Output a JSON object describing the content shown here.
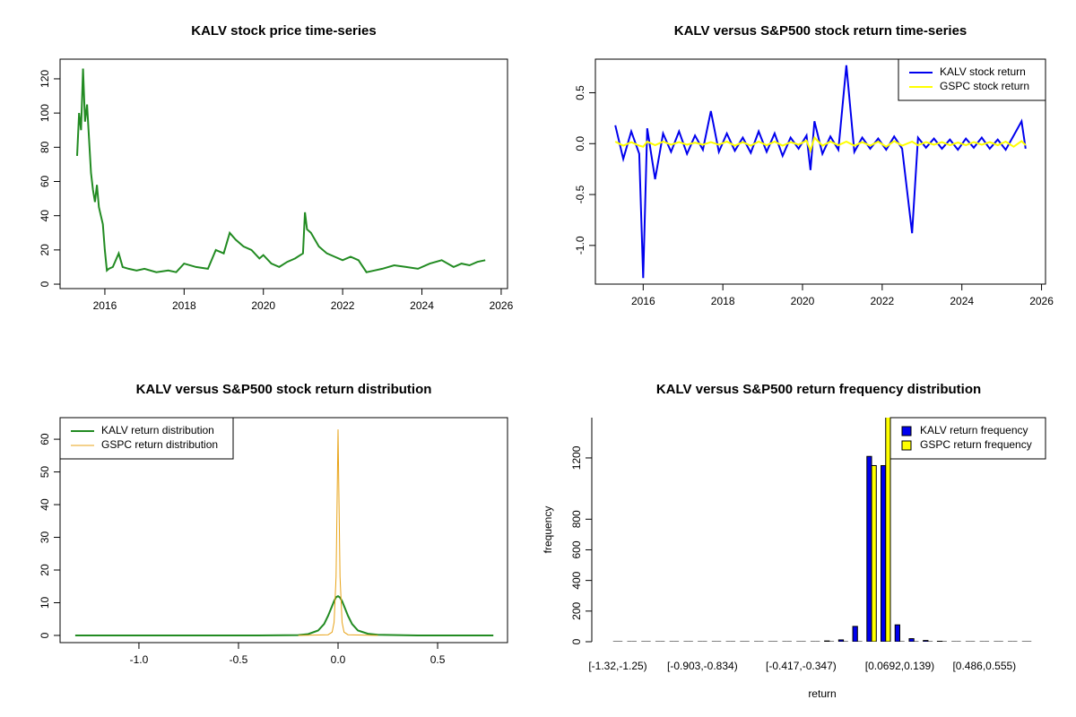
{
  "chart_data": [
    {
      "type": "line",
      "title": "KALV stock price time-series",
      "color": "#228B22",
      "x": [
        2015.3,
        2015.35,
        2015.4,
        2015.45,
        2015.5,
        2015.55,
        2015.6,
        2015.65,
        2015.7,
        2015.75,
        2015.8,
        2015.85,
        2015.9,
        2015.95,
        2016.0,
        2016.05,
        2016.1,
        2016.2,
        2016.35,
        2016.45,
        2016.6,
        2016.8,
        2017.0,
        2017.3,
        2017.6,
        2017.8,
        2018.0,
        2018.3,
        2018.6,
        2018.8,
        2019.0,
        2019.15,
        2019.3,
        2019.5,
        2019.7,
        2019.9,
        2020.0,
        2020.2,
        2020.4,
        2020.6,
        2020.8,
        2021.0,
        2021.05,
        2021.1,
        2021.2,
        2021.4,
        2021.6,
        2021.8,
        2022.0,
        2022.2,
        2022.4,
        2022.6,
        2022.8,
        2023.0,
        2023.3,
        2023.6,
        2023.9,
        2024.2,
        2024.5,
        2024.8,
        2025.0,
        2025.2,
        2025.4,
        2025.6
      ],
      "values": [
        75,
        100,
        90,
        126,
        95,
        105,
        85,
        65,
        55,
        48,
        58,
        45,
        40,
        35,
        20,
        8,
        9,
        10,
        18,
        10,
        9,
        8,
        9,
        7,
        8,
        7,
        12,
        10,
        9,
        20,
        18,
        30,
        26,
        22,
        20,
        15,
        17,
        12,
        10,
        13,
        15,
        18,
        42,
        32,
        30,
        22,
        18,
        16,
        14,
        16,
        14,
        7,
        8,
        9,
        11,
        10,
        9,
        12,
        14,
        10,
        12,
        11,
        13,
        14
      ],
      "xlim": [
        2014.87,
        2026.16
      ],
      "xticks": [
        2016,
        2018,
        2020,
        2022,
        2024,
        2026
      ],
      "ylim": [
        -2.6,
        131.5
      ],
      "yticks": [
        0,
        20,
        40,
        60,
        80,
        100,
        120
      ]
    },
    {
      "type": "line",
      "title": "KALV versus S&P500 stock return time-series",
      "legend": "topright",
      "x": [
        2015.3,
        2015.5,
        2015.7,
        2015.9,
        2016.0,
        2016.1,
        2016.3,
        2016.5,
        2016.7,
        2016.9,
        2017.1,
        2017.3,
        2017.5,
        2017.7,
        2017.9,
        2018.1,
        2018.3,
        2018.5,
        2018.7,
        2018.9,
        2019.1,
        2019.3,
        2019.5,
        2019.7,
        2019.9,
        2020.1,
        2020.2,
        2020.3,
        2020.5,
        2020.7,
        2020.9,
        2021.1,
        2021.3,
        2021.5,
        2021.7,
        2021.9,
        2022.1,
        2022.3,
        2022.5,
        2022.75,
        2022.9,
        2023.1,
        2023.3,
        2023.5,
        2023.7,
        2023.9,
        2024.1,
        2024.3,
        2024.5,
        2024.7,
        2024.9,
        2025.1,
        2025.3,
        2025.5,
        2025.6
      ],
      "series": [
        {
          "name": "KALV stock return",
          "color": "#0000EE",
          "values": [
            0.18,
            -0.15,
            0.12,
            -0.1,
            -1.32,
            0.15,
            -0.35,
            0.1,
            -0.08,
            0.12,
            -0.1,
            0.08,
            -0.06,
            0.32,
            -0.08,
            0.1,
            -0.07,
            0.06,
            -0.09,
            0.12,
            -0.08,
            0.1,
            -0.12,
            0.06,
            -0.05,
            0.08,
            -0.26,
            0.22,
            -0.1,
            0.07,
            -0.06,
            0.77,
            -0.08,
            0.06,
            -0.05,
            0.05,
            -0.06,
            0.07,
            -0.05,
            -0.88,
            0.06,
            -0.04,
            0.05,
            -0.05,
            0.04,
            -0.06,
            0.05,
            -0.04,
            0.06,
            -0.05,
            0.04,
            -0.06,
            0.08,
            0.22,
            -0.05
          ]
        },
        {
          "name": "GSPC stock return",
          "color": "#FFFF00",
          "values": [
            0.02,
            -0.02,
            0.015,
            -0.02,
            -0.03,
            0.02,
            -0.015,
            0.02,
            -0.01,
            0.015,
            -0.01,
            0.01,
            -0.01,
            0.015,
            -0.01,
            0.02,
            -0.02,
            0.015,
            -0.02,
            0.02,
            -0.015,
            0.02,
            -0.02,
            0.015,
            -0.01,
            0.03,
            -0.07,
            0.06,
            -0.02,
            0.02,
            -0.015,
            0.02,
            -0.02,
            0.015,
            -0.02,
            0.02,
            -0.03,
            0.025,
            -0.02,
            0.02,
            -0.015,
            0.015,
            -0.01,
            0.015,
            -0.015,
            0.01,
            -0.015,
            0.015,
            -0.01,
            0.015,
            -0.015,
            0.02,
            -0.03,
            0.025,
            -0.015
          ]
        }
      ],
      "xlim": [
        2014.8,
        2026.1
      ],
      "xticks": [
        2016,
        2018,
        2020,
        2022,
        2024,
        2026
      ],
      "ylim": [
        -1.38,
        0.83
      ],
      "yticks": [
        {
          "value": -1,
          "label": "-1.0"
        },
        -0.5,
        {
          "value": 0,
          "label": "0.0"
        },
        0.5
      ]
    },
    {
      "type": "line",
      "title": "KALV versus S&P500 stock return distribution",
      "legend": "topleft",
      "series": [
        {
          "name": "KALV return distribution",
          "color": "#228B22",
          "x": [
            -1.32,
            -0.4,
            -0.2,
            -0.15,
            -0.1,
            -0.07,
            -0.05,
            -0.03,
            -0.02,
            -0.01,
            0,
            0.01,
            0.02,
            0.03,
            0.05,
            0.07,
            0.1,
            0.15,
            0.2,
            0.4,
            0.78
          ],
          "values": [
            0,
            0,
            0.1,
            0.4,
            1.5,
            3.5,
            6,
            9,
            10.5,
            11.7,
            12,
            11.6,
            10.5,
            9,
            6,
            3.5,
            1.5,
            0.5,
            0.2,
            0,
            0
          ]
        },
        {
          "name": "GSPC return distribution",
          "color": "#E8A317",
          "x": [
            -0.2,
            -0.05,
            -0.03,
            -0.02,
            -0.01,
            -0.005,
            0,
            0.005,
            0.01,
            0.02,
            0.03,
            0.05,
            0.2
          ],
          "values": [
            0,
            0.2,
            1,
            4,
            18,
            40,
            63,
            40,
            18,
            4,
            1,
            0.2,
            0
          ]
        }
      ],
      "xlim": [
        -1.396,
        0.851
      ],
      "xticks": [
        {
          "value": -1,
          "label": "-1.0"
        },
        -0.5,
        {
          "value": 0,
          "label": "0.0"
        },
        0.5
      ],
      "ylim": [
        -2.2,
        66.6
      ],
      "yticks": [
        0,
        10,
        20,
        30,
        40,
        50,
        60
      ]
    },
    {
      "type": "bar",
      "title": "KALV versus S&P500 return frequency distribution",
      "legend": "topright",
      "x_label": "return",
      "y_label": "frequency",
      "categories": [
        "[-1.32,-1.25)",
        null,
        null,
        null,
        null,
        null,
        "[-0.903,-0.834)",
        null,
        null,
        null,
        null,
        null,
        null,
        "[-0.417,-0.347)",
        null,
        null,
        null,
        null,
        null,
        null,
        "[0.0692,0.139)",
        null,
        null,
        null,
        null,
        null,
        "[0.486,0.555)",
        null,
        null,
        null
      ],
      "series": [
        {
          "name": "KALV return frequency",
          "color": "#0000EE",
          "values": [
            0,
            0,
            0,
            0,
            0,
            0,
            0,
            0,
            0,
            0,
            0,
            0,
            0,
            0,
            0,
            5,
            12,
            100,
            1210,
            1150,
            110,
            20,
            8,
            3,
            0,
            0,
            0,
            0,
            0,
            0
          ]
        },
        {
          "name": "GSPC return frequency",
          "color": "#FFFF00",
          "values": [
            0,
            0,
            0,
            0,
            0,
            0,
            0,
            0,
            0,
            0,
            0,
            0,
            0,
            0,
            0,
            0,
            0,
            0,
            1150,
            1480,
            0,
            0,
            0,
            0,
            0,
            0,
            0,
            0,
            0,
            0
          ]
        }
      ],
      "ylim": [
        0,
        1463
      ],
      "yticks": [
        0,
        200,
        400,
        600,
        800,
        1200
      ]
    }
  ]
}
